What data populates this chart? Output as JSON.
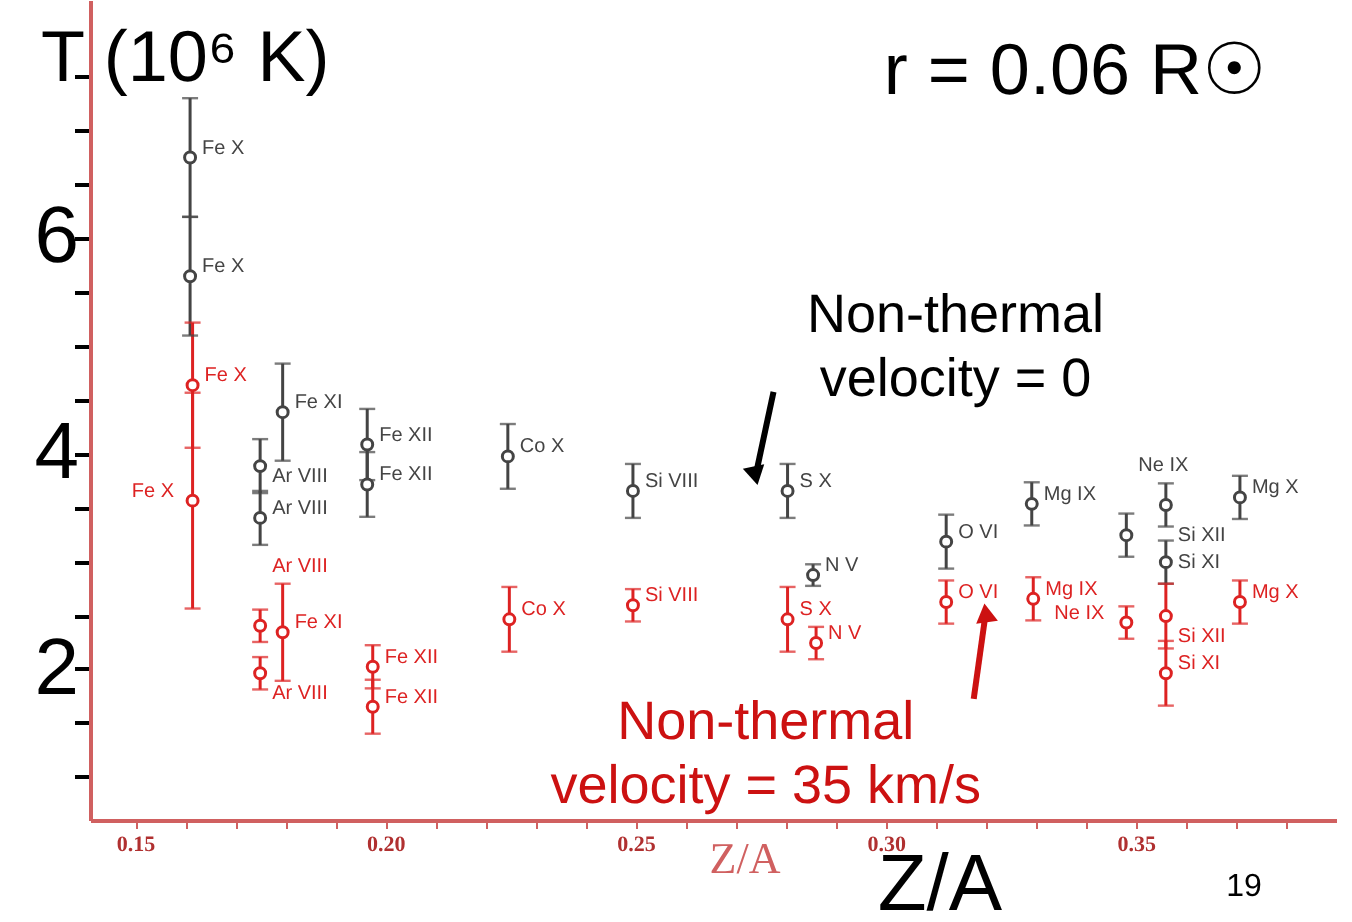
{
  "chart_data": {
    "type": "scatter",
    "title": "r = 0.06 R☉",
    "xlabel": "Z/A",
    "ylabel": "T (10⁶ K)",
    "xlim": [
      0.141,
      0.39
    ],
    "ylim": [
      0.6,
      8.2
    ],
    "xticks": [
      {
        "value": 0.15,
        "label": "0.15"
      },
      {
        "value": 0.16,
        "label": null
      },
      {
        "value": 0.17,
        "label": null
      },
      {
        "value": 0.18,
        "label": null
      },
      {
        "value": 0.19,
        "label": null
      },
      {
        "value": 0.2,
        "label": "0.20"
      },
      {
        "value": 0.21,
        "label": null
      },
      {
        "value": 0.22,
        "label": null
      },
      {
        "value": 0.23,
        "label": null
      },
      {
        "value": 0.24,
        "label": null
      },
      {
        "value": 0.25,
        "label": "0.25"
      },
      {
        "value": 0.26,
        "label": null
      },
      {
        "value": 0.27,
        "label": null
      },
      {
        "value": 0.28,
        "label": null
      },
      {
        "value": 0.29,
        "label": null
      },
      {
        "value": 0.3,
        "label": "0.30"
      },
      {
        "value": 0.31,
        "label": null
      },
      {
        "value": 0.32,
        "label": null
      },
      {
        "value": 0.33,
        "label": null
      },
      {
        "value": 0.34,
        "label": null
      },
      {
        "value": 0.35,
        "label": "0.35"
      },
      {
        "value": 0.36,
        "label": null
      },
      {
        "value": 0.37,
        "label": null
      },
      {
        "value": 0.38,
        "label": null
      }
    ],
    "yticks": [
      {
        "value": 1,
        "label": null
      },
      {
        "value": 1.5,
        "label": null
      },
      2,
      {
        "value": 2.5,
        "label": null
      },
      {
        "value": 3,
        "label": null
      },
      {
        "value": 3.5,
        "label": null
      },
      4,
      {
        "value": 4.5,
        "label": null
      },
      {
        "value": 5,
        "label": null
      },
      {
        "value": 5.5,
        "label": null
      },
      6,
      {
        "value": 6.5,
        "label": null
      },
      {
        "value": 7,
        "label": null
      },
      {
        "value": 7.5,
        "label": null
      }
    ],
    "grid": false,
    "marker": "circle",
    "series": [
      {
        "color": "#444444",
        "x": [
          0.161,
          0.161,
          0.1795,
          0.175,
          0.175,
          0.1964,
          0.1964,
          0.2245,
          0.2495,
          0.2804,
          0.2855,
          0.3121,
          0.3292,
          0.3481,
          0.356,
          0.356,
          0.3708
        ],
        "values": [
          6.74,
          5.64,
          4.38,
          3.88,
          3.4,
          4.08,
          3.71,
          3.97,
          3.65,
          3.65,
          2.87,
          3.18,
          3.53,
          3.24,
          3.52,
          2.99,
          3.59
        ],
        "errors": [
          0.55,
          0.55,
          0.45,
          0.25,
          0.25,
          0.33,
          0.3,
          0.3,
          0.25,
          0.25,
          0.1,
          0.25,
          0.2,
          0.2,
          0.2,
          0.2,
          0.2
        ]
      },
      {
        "color": "#dd2222",
        "x": [
          0.1615,
          0.1615,
          0.1795,
          0.175,
          0.175,
          0.1975,
          0.1975,
          0.2248,
          0.2495,
          0.2804,
          0.2861,
          0.3121,
          0.3295,
          0.3481,
          0.356,
          0.356,
          0.3708
        ],
        "values": [
          4.63,
          3.56,
          2.34,
          2.4,
          1.96,
          2.02,
          1.65,
          2.46,
          2.59,
          2.46,
          2.24,
          2.62,
          2.65,
          2.43,
          2.49,
          1.96,
          2.62
        ],
        "errors": [
          0.58,
          1.0,
          0.45,
          0.15,
          0.15,
          0.2,
          0.25,
          0.3,
          0.15,
          0.3,
          0.15,
          0.2,
          0.2,
          0.15,
          0.3,
          0.3,
          0.2
        ]
      }
    ],
    "annotations": [
      {
        "text": "Non-thermal velocity = 0",
        "x": 0.274,
        "y": 3.79
      },
      {
        "text": "Non-thermal velocity = 35 km/s",
        "x": 0.32,
        "y": 2.52
      },
      "Z/A",
      "19",
      {
        "text": "Fe X",
        "x": 0.161,
        "y": 6.74
      },
      {
        "text": "Fe X",
        "x": 0.161,
        "y": 5.64
      },
      {
        "text": "Fe XI",
        "x": 0.1795,
        "y": 4.38
      },
      {
        "text": "Ar VIII",
        "x": 0.175,
        "y": 3.88
      },
      {
        "text": "Ar VIII",
        "x": 0.175,
        "y": 3.4
      },
      {
        "text": "Fe XII",
        "x": 0.1964,
        "y": 4.08
      },
      {
        "text": "Fe XII",
        "x": 0.1964,
        "y": 3.71
      },
      {
        "text": "Co X",
        "x": 0.2245,
        "y": 3.97
      },
      {
        "text": "Si VIII",
        "x": 0.2495,
        "y": 3.65
      },
      {
        "text": "S X",
        "x": 0.2804,
        "y": 3.65
      },
      {
        "text": "N V",
        "x": 0.2855,
        "y": 2.87
      },
      {
        "text": "O VI",
        "x": 0.3121,
        "y": 3.18
      },
      {
        "text": "Mg IX",
        "x": 0.3292,
        "y": 3.53
      },
      {
        "text": "Ne IX",
        "x": 0.3481,
        "y": 3.24
      },
      {
        "text": "Si XII",
        "x": 0.356,
        "y": 3.52
      },
      {
        "text": "Si XI",
        "x": 0.356,
        "y": 2.99
      },
      {
        "text": "Mg X",
        "x": 0.3708,
        "y": 3.59
      },
      {
        "text": "Fe X",
        "x": 0.1615,
        "y": 4.63
      },
      {
        "text": "Fe X",
        "x": 0.1615,
        "y": 3.56
      },
      {
        "text": "Fe XI",
        "x": 0.1795,
        "y": 2.34
      },
      {
        "text": "Ar VIII",
        "x": 0.175,
        "y": 2.4
      },
      {
        "text": "Ar VIII",
        "x": 0.175,
        "y": 1.96
      },
      {
        "text": "Fe XII",
        "x": 0.1975,
        "y": 2.02
      },
      {
        "text": "Fe XII",
        "x": 0.1975,
        "y": 1.65
      },
      {
        "text": "Co X",
        "x": 0.2248,
        "y": 2.46
      },
      {
        "text": "Si VIII",
        "x": 0.2495,
        "y": 2.59
      },
      {
        "text": "S X",
        "x": 0.2804,
        "y": 2.46
      },
      {
        "text": "N V",
        "x": 0.2861,
        "y": 2.24
      },
      {
        "text": "O VI",
        "x": 0.3121,
        "y": 2.62
      },
      {
        "text": "Mg IX",
        "x": 0.3295,
        "y": 2.65
      },
      {
        "text": "Ne IX",
        "x": 0.3481,
        "y": 2.43
      },
      {
        "text": "Si XII",
        "x": 0.356,
        "y": 2.49
      },
      {
        "text": "Si XI",
        "x": 0.356,
        "y": 1.96
      },
      {
        "text": "Mg X",
        "x": 0.3708,
        "y": 2.62
      }
    ]
  }
}
